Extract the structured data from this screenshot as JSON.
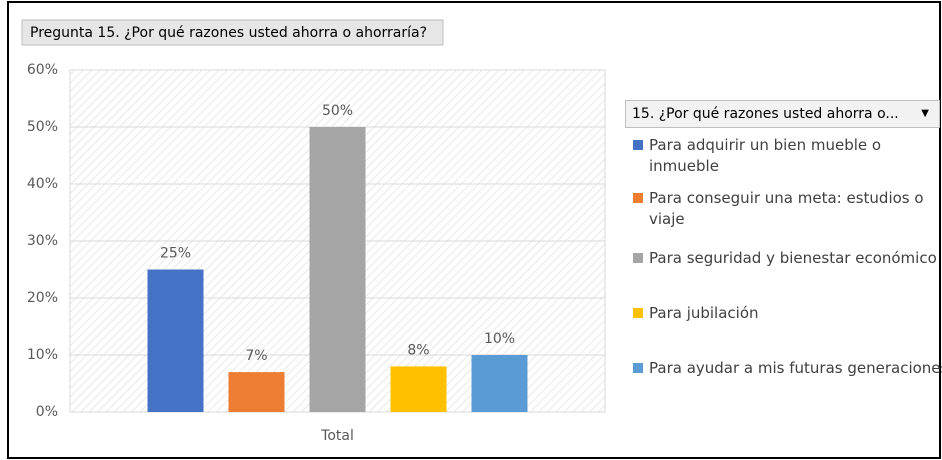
{
  "chart_data": {
    "type": "bar",
    "title": "Pregunta 15. ¿Por qué razones usted ahorra o ahorraría?",
    "legend_title": "15. ¿Por qué razones usted ahorra o...",
    "categories": [
      "Total"
    ],
    "series": [
      {
        "name": "Para adquirir un bien mueble o inmueble",
        "color": "#4472c4",
        "values": [
          25
        ],
        "value_labels": [
          "25%"
        ]
      },
      {
        "name": "Para conseguir una meta: estudios o viaje",
        "color": "#ed7d31",
        "values": [
          7
        ],
        "value_labels": [
          "7%"
        ]
      },
      {
        "name": "Para seguridad y bienestar económico",
        "color": "#a5a5a5",
        "values": [
          50
        ],
        "value_labels": [
          "50%"
        ]
      },
      {
        "name": "Para jubilación",
        "color": "#ffc000",
        "values": [
          8
        ],
        "value_labels": [
          "8%"
        ]
      },
      {
        "name": "Para ayudar a mis futuras generaciones",
        "color": "#5b9bd5",
        "values": [
          10
        ],
        "value_labels": [
          "10%"
        ]
      }
    ],
    "ylim": [
      0,
      60
    ],
    "yticks": [
      {
        "value": 0,
        "label": "0%"
      },
      {
        "value": 10,
        "label": "10%"
      },
      {
        "value": 20,
        "label": "20%"
      },
      {
        "value": 30,
        "label": "30%"
      },
      {
        "value": 40,
        "label": "40%"
      },
      {
        "value": 50,
        "label": "50%"
      },
      {
        "value": 60,
        "label": "60%"
      }
    ],
    "legend_position": "right"
  }
}
